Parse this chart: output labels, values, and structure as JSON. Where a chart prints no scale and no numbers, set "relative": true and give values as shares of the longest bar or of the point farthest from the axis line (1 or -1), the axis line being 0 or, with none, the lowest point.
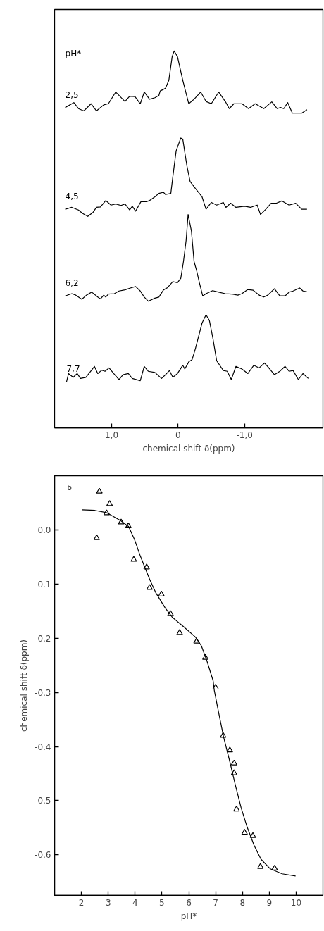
{
  "chart_data": [
    {
      "type": "line",
      "relative": true,
      "xlabel": "chemical shift δ(ppm)",
      "legend_title": "pH*",
      "xlim": [
        1.86,
        -2.18
      ],
      "xticks": [
        {
          "value": 1.0,
          "label": "1,0"
        },
        0,
        {
          "value": -1.0,
          "label": "-1,0"
        }
      ],
      "series": [
        {
          "name": "2,5",
          "color": "#000000",
          "x": [
            1.7,
            1.57,
            1.5,
            1.42,
            1.31,
            1.23,
            1.12,
            1.05,
            0.94,
            0.8,
            0.73,
            0.65,
            0.57,
            0.51,
            0.43,
            0.35,
            0.29,
            0.27,
            0.19,
            0.14,
            0.09,
            0.06,
            0.01,
            -0.07,
            -0.16,
            -0.24,
            -0.34,
            -0.42,
            -0.5,
            -0.61,
            -0.71,
            -0.77,
            -0.84,
            -0.96,
            -1.06,
            -1.16,
            -1.29,
            -1.41,
            -1.49,
            -1.54,
            -1.59,
            -1.65,
            -1.72,
            -1.86,
            -1.94
          ],
          "values": [
            0.85,
            0.863,
            0.847,
            0.841,
            0.86,
            0.841,
            0.857,
            0.86,
            0.891,
            0.866,
            0.88,
            0.879,
            0.86,
            0.891,
            0.872,
            0.876,
            0.882,
            0.894,
            0.901,
            0.922,
            0.985,
            1.0,
            0.985,
            0.922,
            0.86,
            0.872,
            0.891,
            0.866,
            0.86,
            0.891,
            0.866,
            0.847,
            0.86,
            0.86,
            0.847,
            0.86,
            0.847,
            0.865,
            0.847,
            0.85,
            0.847,
            0.863,
            0.835,
            0.835,
            0.844
          ]
        },
        {
          "name": "4,5",
          "color": "#000000",
          "x": [
            1.7,
            1.6,
            1.5,
            1.44,
            1.36,
            1.28,
            1.23,
            1.17,
            1.09,
            1.01,
            0.94,
            0.86,
            0.8,
            0.73,
            0.69,
            0.64,
            0.56,
            0.48,
            0.43,
            0.35,
            0.29,
            0.22,
            0.19,
            0.11,
            0.08,
            0.03,
            -0.04,
            -0.07,
            -0.13,
            -0.18,
            -0.26,
            -0.36,
            -0.42,
            -0.5,
            -0.58,
            -0.68,
            -0.72,
            -0.79,
            -0.87,
            -1.0,
            -1.09,
            -1.19,
            -1.24,
            -1.32,
            -1.4,
            -1.48,
            -1.56,
            -1.67,
            -1.77,
            -1.86,
            -1.94
          ],
          "values": [
            0.58,
            0.585,
            0.578,
            0.569,
            0.561,
            0.572,
            0.585,
            0.586,
            0.603,
            0.591,
            0.594,
            0.59,
            0.594,
            0.578,
            0.588,
            0.575,
            0.6,
            0.6,
            0.603,
            0.613,
            0.622,
            0.625,
            0.619,
            0.622,
            0.666,
            0.735,
            0.769,
            0.766,
            0.697,
            0.654,
            0.635,
            0.613,
            0.58,
            0.598,
            0.591,
            0.598,
            0.585,
            0.596,
            0.585,
            0.588,
            0.585,
            0.591,
            0.566,
            0.58,
            0.596,
            0.596,
            0.602,
            0.591,
            0.596,
            0.58,
            0.58
          ]
        },
        {
          "name": "6,2",
          "color": "#000000",
          "x": [
            1.7,
            1.6,
            1.54,
            1.45,
            1.38,
            1.3,
            1.21,
            1.17,
            1.12,
            1.09,
            1.05,
            0.96,
            0.89,
            0.8,
            0.72,
            0.64,
            0.57,
            0.51,
            0.45,
            0.35,
            0.29,
            0.22,
            0.16,
            0.08,
            0.01,
            -0.04,
            -0.08,
            -0.12,
            -0.15,
            -0.2,
            -0.24,
            -0.28,
            -0.32,
            -0.37,
            -0.42,
            -0.52,
            -0.61,
            -0.71,
            -0.8,
            -0.9,
            -0.96,
            -1.05,
            -1.13,
            -1.22,
            -1.29,
            -1.35,
            -1.45,
            -1.53,
            -1.61,
            -1.67,
            -1.73,
            -1.83,
            -1.88,
            -1.94
          ],
          "values": [
            0.35,
            0.356,
            0.352,
            0.341,
            0.352,
            0.36,
            0.347,
            0.342,
            0.352,
            0.347,
            0.355,
            0.356,
            0.363,
            0.366,
            0.371,
            0.375,
            0.363,
            0.347,
            0.336,
            0.344,
            0.347,
            0.366,
            0.372,
            0.388,
            0.385,
            0.397,
            0.441,
            0.497,
            0.566,
            0.522,
            0.441,
            0.416,
            0.385,
            0.35,
            0.356,
            0.364,
            0.36,
            0.356,
            0.355,
            0.352,
            0.356,
            0.367,
            0.365,
            0.352,
            0.347,
            0.352,
            0.369,
            0.35,
            0.35,
            0.36,
            0.363,
            0.371,
            0.363,
            0.361
          ]
        },
        {
          "name": "7,7",
          "color": "#000000",
          "x": [
            1.68,
            1.65,
            1.58,
            1.52,
            1.47,
            1.39,
            1.33,
            1.26,
            1.21,
            1.15,
            1.1,
            1.04,
            0.97,
            0.89,
            0.83,
            0.75,
            0.69,
            0.57,
            0.51,
            0.45,
            0.35,
            0.25,
            0.19,
            0.13,
            0.08,
            0.01,
            -0.07,
            -0.1,
            -0.16,
            -0.21,
            -0.26,
            -0.36,
            -0.42,
            -0.47,
            -0.52,
            -0.58,
            -0.68,
            -0.74,
            -0.8,
            -0.87,
            -0.96,
            -1.05,
            -1.14,
            -1.22,
            -1.3,
            -1.38,
            -1.45,
            -1.53,
            -1.61,
            -1.67,
            -1.73,
            -1.81,
            -1.88,
            -1.96
          ],
          "values": [
            0.122,
            0.144,
            0.134,
            0.144,
            0.131,
            0.134,
            0.147,
            0.163,
            0.144,
            0.153,
            0.15,
            0.159,
            0.144,
            0.128,
            0.141,
            0.144,
            0.131,
            0.125,
            0.163,
            0.15,
            0.147,
            0.131,
            0.141,
            0.152,
            0.134,
            0.144,
            0.166,
            0.156,
            0.175,
            0.181,
            0.21,
            0.278,
            0.3,
            0.285,
            0.241,
            0.178,
            0.152,
            0.15,
            0.128,
            0.163,
            0.156,
            0.144,
            0.166,
            0.159,
            0.172,
            0.156,
            0.141,
            0.15,
            0.163,
            0.15,
            0.152,
            0.128,
            0.144,
            0.131
          ]
        }
      ]
    },
    {
      "type": "scatter",
      "xlabel": "pH*",
      "ylabel": "chemical shift δ(ppm)",
      "annotations": [
        "b"
      ],
      "xlim": [
        1.0,
        11.0
      ],
      "xticks": [
        2,
        3,
        4,
        5,
        6,
        7,
        8,
        9,
        10
      ],
      "ylim": [
        -0.675,
        0.1
      ],
      "yticks": [
        {
          "value": 0,
          "label": "0.0"
        },
        {
          "value": -0.1,
          "label": "-0.1"
        },
        {
          "value": -0.2,
          "label": "-0.2"
        },
        {
          "value": -0.3,
          "label": "-0.3"
        },
        {
          "value": -0.4,
          "label": "-0.4"
        },
        {
          "value": -0.5,
          "label": "-0.5"
        },
        {
          "value": -0.6,
          "label": "-0.6"
        }
      ],
      "series": [
        {
          "type": "scatter",
          "marker": "triangle",
          "color": "#000000",
          "x": [
            2.67,
            2.57,
            3.05,
            2.94,
            3.48,
            3.75,
            3.95,
            4.43,
            4.54,
            4.98,
            5.32,
            5.66,
            6.29,
            6.62,
            7.0,
            7.28,
            7.53,
            7.69,
            7.69,
            7.78,
            8.08,
            8.39,
            8.67,
            9.2
          ],
          "values": [
            0.071,
            -0.015,
            0.048,
            0.031,
            0.014,
            0.007,
            -0.055,
            -0.069,
            -0.107,
            -0.119,
            -0.155,
            -0.19,
            -0.206,
            -0.236,
            -0.291,
            -0.38,
            -0.407,
            -0.431,
            -0.449,
            -0.516,
            -0.559,
            -0.565,
            -0.622,
            -0.625
          ]
        },
        {
          "type": "line",
          "color": "#000000",
          "x": [
            2.02,
            2.5,
            2.93,
            3.46,
            3.76,
            3.98,
            4.2,
            4.37,
            4.55,
            4.77,
            5.12,
            5.38,
            5.81,
            6.25,
            6.47,
            6.69,
            6.91,
            6.95,
            7.12,
            7.3,
            7.52,
            7.73,
            7.95,
            8.17,
            8.43,
            8.69,
            9.04,
            9.48,
            9.98
          ],
          "values": [
            0.037,
            0.036,
            0.032,
            0.017,
            0.006,
            -0.018,
            -0.049,
            -0.07,
            -0.092,
            -0.116,
            -0.144,
            -0.161,
            -0.179,
            -0.198,
            -0.214,
            -0.244,
            -0.279,
            -0.296,
            -0.339,
            -0.383,
            -0.426,
            -0.47,
            -0.513,
            -0.548,
            -0.582,
            -0.608,
            -0.626,
            -0.635,
            -0.639
          ]
        }
      ]
    }
  ]
}
